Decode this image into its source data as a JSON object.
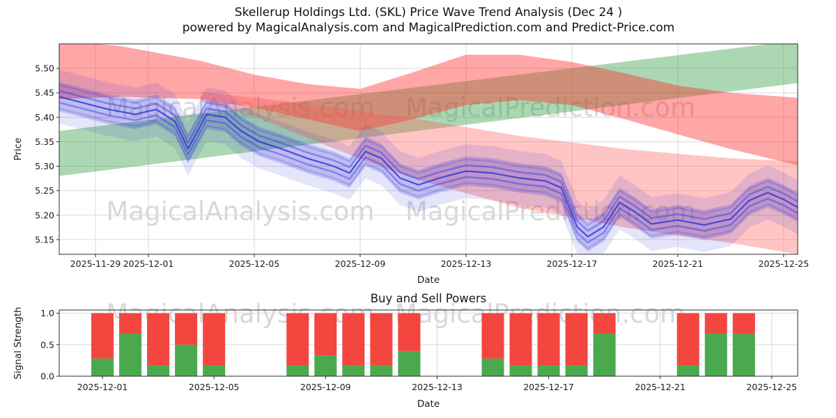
{
  "title": {
    "line1": "Skellerup Holdings Ltd. (SKL) Price Wave Trend Analysis (Dec 24 )",
    "line2": "powered by MagicalAnalysis.com and MagicalPrediction.com and Predict-Price.com"
  },
  "watermarks": {
    "analysis": "MagicalAnalysis.com",
    "prediction": "MagicalPrediction.com"
  },
  "colors": {
    "background": "#ffffff",
    "grid": "#d9d9d9",
    "spine": "#2b2b2b",
    "text": "#1a1a1a",
    "watermark": "#b9b9b9",
    "band_green": "#2e9e3e",
    "band_red": "#ff2a2a",
    "band_red_light": "#ff5555",
    "wave_blue": "#3030d8",
    "bar_red": "#f2463f",
    "bar_green": "#4aa94f"
  },
  "chart_data": [
    {
      "type": "area",
      "title": "",
      "xlabel": "Date",
      "ylabel": "Price",
      "ylim": [
        5.12,
        5.55
      ],
      "yticks": [
        5.15,
        5.2,
        5.25,
        5.3,
        5.35,
        5.4,
        5.45,
        5.5
      ],
      "ytick_decimals": 2,
      "xdomain": [
        0.63,
        28.53
      ],
      "xticks": [
        {
          "day": 2,
          "label": "2025-11-29"
        },
        {
          "day": 4,
          "label": "2025-12-01"
        },
        {
          "day": 8,
          "label": "2025-12-05"
        },
        {
          "day": 12,
          "label": "2025-12-09"
        },
        {
          "day": 16,
          "label": "2025-12-13"
        },
        {
          "day": 20,
          "label": "2025-12-17"
        },
        {
          "day": 24,
          "label": "2025-12-21"
        },
        {
          "day": 28,
          "label": "2025-12-25"
        }
      ],
      "bands": [
        {
          "name": "bull-channel",
          "color_key": "band_green",
          "alpha": 0.4,
          "upper": [
            [
              0.63,
              5.372
            ],
            [
              28.53,
              5.557
            ]
          ],
          "lower": [
            [
              0.63,
              5.28
            ],
            [
              28.53,
              5.47
            ]
          ]
        },
        {
          "name": "bear-channel-upper",
          "color_key": "band_red",
          "alpha": 0.42,
          "upper": [
            [
              0.63,
              5.557
            ],
            [
              3,
              5.545
            ],
            [
              6,
              5.515
            ],
            [
              8,
              5.487
            ],
            [
              10,
              5.468
            ],
            [
              12,
              5.458
            ],
            [
              14,
              5.492
            ],
            [
              16,
              5.528
            ],
            [
              18,
              5.528
            ],
            [
              20,
              5.513
            ],
            [
              22,
              5.49
            ],
            [
              24,
              5.465
            ],
            [
              26,
              5.45
            ],
            [
              28.53,
              5.44
            ]
          ],
          "lower": [
            [
              0.63,
              5.437
            ],
            [
              3,
              5.442
            ],
            [
              6,
              5.437
            ],
            [
              8,
              5.42
            ],
            [
              10,
              5.396
            ],
            [
              12,
              5.372
            ],
            [
              14,
              5.396
            ],
            [
              16,
              5.425
            ],
            [
              18,
              5.435
            ],
            [
              20,
              5.425
            ],
            [
              22,
              5.396
            ],
            [
              24,
              5.365
            ],
            [
              26,
              5.335
            ],
            [
              28.53,
              5.302
            ]
          ]
        },
        {
          "name": "bear-channel-lower",
          "color_key": "band_red_light",
          "alpha": 0.34,
          "upper": [
            [
              6,
              5.452
            ],
            [
              10,
              5.428
            ],
            [
              14,
              5.398
            ],
            [
              18,
              5.362
            ],
            [
              22,
              5.335
            ],
            [
              26,
              5.316
            ],
            [
              28.53,
              5.31
            ]
          ],
          "lower": [
            [
              6,
              5.432
            ],
            [
              8,
              5.402
            ],
            [
              10,
              5.358
            ],
            [
              12,
              5.315
            ],
            [
              14,
              5.275
            ],
            [
              16,
              5.245
            ],
            [
              18,
              5.215
            ],
            [
              20,
              5.195
            ],
            [
              22,
              5.175
            ],
            [
              24,
              5.158
            ],
            [
              26,
              5.143
            ],
            [
              28.53,
              5.12
            ]
          ]
        }
      ],
      "wave": {
        "name": "price-wave",
        "color_key": "wave_blue",
        "outer_halfwidth": 0.055,
        "band_halfwidth": 0.03,
        "points": [
          [
            0.63,
            5.442
          ],
          [
            1.5,
            5.43
          ],
          [
            2.5,
            5.416
          ],
          [
            3.5,
            5.406
          ],
          [
            4.3,
            5.416
          ],
          [
            5.0,
            5.392
          ],
          [
            5.5,
            5.336
          ],
          [
            6.2,
            5.406
          ],
          [
            6.9,
            5.4
          ],
          [
            7.5,
            5.372
          ],
          [
            8.2,
            5.35
          ],
          [
            9,
            5.336
          ],
          [
            10,
            5.316
          ],
          [
            11,
            5.3
          ],
          [
            11.6,
            5.286
          ],
          [
            12.2,
            5.33
          ],
          [
            12.8,
            5.316
          ],
          [
            13.5,
            5.276
          ],
          [
            14.2,
            5.262
          ],
          [
            15,
            5.276
          ],
          [
            16,
            5.29
          ],
          [
            17,
            5.286
          ],
          [
            18,
            5.276
          ],
          [
            19,
            5.27
          ],
          [
            19.6,
            5.256
          ],
          [
            20.2,
            5.176
          ],
          [
            20.6,
            5.156
          ],
          [
            21.2,
            5.176
          ],
          [
            21.8,
            5.226
          ],
          [
            22.4,
            5.206
          ],
          [
            23,
            5.182
          ],
          [
            24,
            5.19
          ],
          [
            25,
            5.18
          ],
          [
            26,
            5.192
          ],
          [
            26.7,
            5.23
          ],
          [
            27.4,
            5.246
          ],
          [
            28,
            5.232
          ],
          [
            28.53,
            5.216
          ]
        ]
      }
    },
    {
      "type": "bar",
      "title": "Buy and Sell Powers",
      "xlabel": "Date",
      "ylabel": "Signal Strength",
      "ylim": [
        0,
        1.05
      ],
      "yticks": [
        0.0,
        0.5,
        1.0
      ],
      "ytick_decimals": 1,
      "xdomain": [
        2.45,
        28.93
      ],
      "xticks": [
        {
          "day": 4,
          "label": "2025-12-01"
        },
        {
          "day": 8,
          "label": "2025-12-05"
        },
        {
          "day": 12,
          "label": "2025-12-09"
        },
        {
          "day": 16,
          "label": "2025-12-13"
        },
        {
          "day": 20,
          "label": "2025-12-17"
        },
        {
          "day": 24,
          "label": "2025-12-21"
        },
        {
          "day": 28,
          "label": "2025-12-25"
        }
      ],
      "bar_width_days": 0.8,
      "categories": [
        "2025-12-01",
        "2025-12-02",
        "2025-12-03",
        "2025-12-04",
        "2025-12-05",
        "2025-12-08",
        "2025-12-09",
        "2025-12-10",
        "2025-12-11",
        "2025-12-12",
        "2025-12-15",
        "2025-12-16",
        "2025-12-17",
        "2025-12-18",
        "2025-12-19",
        "2025-12-22",
        "2025-12-23",
        "2025-12-24"
      ],
      "days": [
        4,
        5,
        6,
        7,
        8,
        11,
        12,
        13,
        14,
        15,
        18,
        19,
        20,
        21,
        22,
        25,
        26,
        27
      ],
      "series": [
        {
          "name": "Buy",
          "color_key": "bar_green",
          "values": [
            0.28,
            0.68,
            0.17,
            0.5,
            0.17,
            0.17,
            0.33,
            0.17,
            0.17,
            0.4,
            0.28,
            0.17,
            0.17,
            0.17,
            0.68,
            0.17,
            0.68,
            0.67
          ]
        },
        {
          "name": "Sell",
          "color_key": "bar_red",
          "values": [
            0.72,
            0.32,
            0.83,
            0.5,
            0.83,
            0.83,
            0.67,
            0.83,
            0.83,
            0.6,
            0.72,
            0.83,
            0.83,
            0.83,
            0.32,
            0.83,
            0.32,
            0.33
          ]
        }
      ]
    }
  ]
}
